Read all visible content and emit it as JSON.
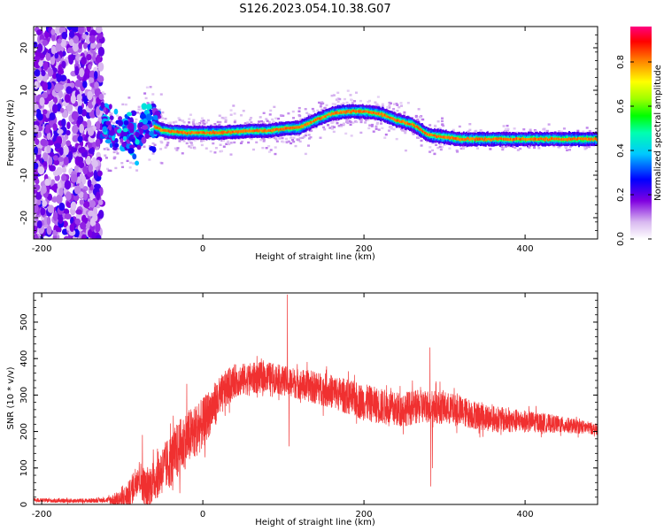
{
  "title": "S126.2023.054.10.38.G07",
  "chart_data": [
    {
      "type": "heatmap",
      "title": "S126.2023.054.10.38.G07",
      "xlabel": "Height of straight line (km)",
      "ylabel": "Frequency (Hz)",
      "xlim": [
        -210,
        490
      ],
      "ylim": [
        -25,
        25
      ],
      "x_ticks": [
        -200,
        0,
        200,
        400
      ],
      "y_ticks": [
        -20,
        -10,
        0,
        10,
        20
      ],
      "ridge": {
        "x": [
          -125,
          -110,
          -95,
          -80,
          -70,
          -60,
          -50,
          -40,
          -20,
          0,
          20,
          40,
          60,
          80,
          100,
          120,
          140,
          160,
          180,
          200,
          220,
          240,
          260,
          280,
          300,
          320,
          340,
          360,
          380,
          400,
          420,
          440,
          460,
          490
        ],
        "y": [
          4.5,
          -1.5,
          0.5,
          -1.0,
          3.0,
          1.5,
          0.5,
          0.3,
          0.0,
          0.0,
          0.0,
          0.2,
          0.5,
          0.4,
          1.0,
          1.2,
          3.0,
          4.5,
          5.0,
          5.0,
          4.5,
          3.0,
          2.0,
          -0.5,
          -1.0,
          -1.5,
          -1.5,
          -1.5,
          -1.5,
          -1.5,
          -1.5,
          -1.5,
          -1.5,
          -1.5
        ]
      },
      "noise_region_x": [
        -210,
        -125
      ],
      "colorbar": {
        "label": "Normalized spectral amplitude",
        "ticks": [
          0.0,
          0.2,
          0.4,
          0.6,
          0.8
        ],
        "tick_labels": [
          "0.0",
          "0.2",
          "0.4",
          "0.6",
          "0.8"
        ],
        "range": [
          0,
          0.96
        ]
      },
      "grid": false
    },
    {
      "type": "line",
      "xlabel": "Height of straight line (km)",
      "ylabel": "SNR (10 * v/v)",
      "xlim": [
        -210,
        490
      ],
      "ylim": [
        0,
        580
      ],
      "x_ticks": [
        -200,
        0,
        200,
        400
      ],
      "y_ticks": [
        0,
        100,
        200,
        300,
        400,
        500
      ],
      "series": [
        {
          "color": "#f03030",
          "envelope": {
            "x": [
              -210,
              -180,
              -150,
              -120,
              -100,
              -90,
              -80,
              -70,
              -60,
              -50,
              -40,
              -30,
              -20,
              -10,
              0,
              10,
              20,
              30,
              40,
              60,
              80,
              100,
              110,
              120,
              140,
              160,
              180,
              200,
              220,
              240,
              260,
              280,
              300,
              320,
              340,
              360,
              380,
              400,
              420,
              440,
              460,
              480,
              490
            ],
            "y": [
              12,
              10,
              10,
              12,
              14,
              30,
              80,
              40,
              70,
              95,
              120,
              150,
              180,
              200,
              220,
              260,
              290,
              320,
              340,
              345,
              350,
              340,
              335,
              330,
              320,
              310,
              295,
              280,
              270,
              260,
              265,
              270,
              265,
              255,
              245,
              235,
              230,
              228,
              225,
              220,
              215,
              210,
              205
            ]
          },
          "amplitude": {
            "x": [
              -210,
              -120,
              -90,
              -60,
              -30,
              0,
              40,
              100,
              200,
              300,
              400,
              490
            ],
            "y": [
              5,
              6,
              40,
              60,
              80,
              70,
              45,
              40,
              50,
              45,
              30,
              15
            ]
          },
          "spikes": [
            {
              "x": 105,
              "y": 575
            },
            {
              "x": 107,
              "y": 160
            },
            {
              "x": -75,
              "y": 190
            },
            {
              "x": -20,
              "y": 330
            },
            {
              "x": 283,
              "y": 50
            },
            {
              "x": 282,
              "y": 430
            },
            {
              "x": 285,
              "y": 100
            }
          ]
        }
      ],
      "grid": false
    }
  ]
}
